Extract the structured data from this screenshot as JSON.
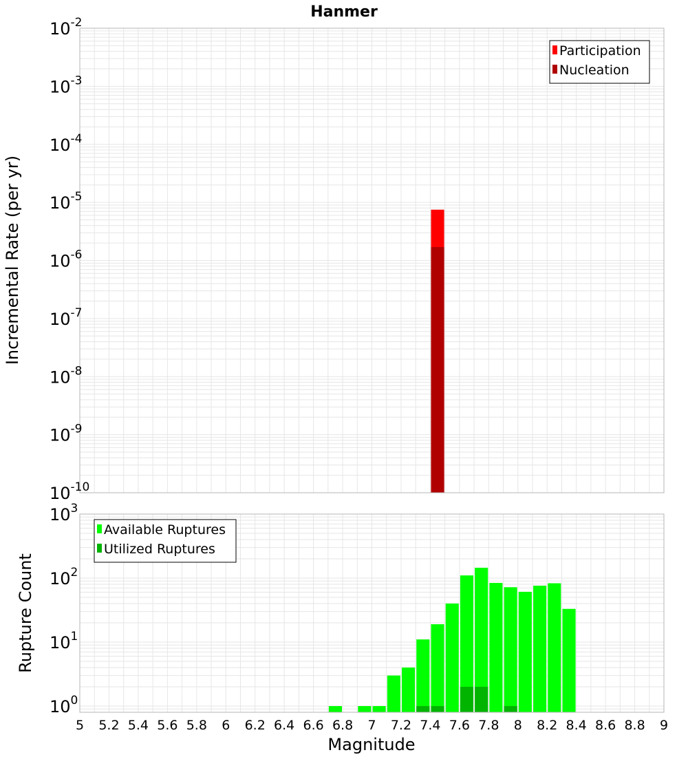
{
  "title": "Hanmer",
  "xlabel": "Magnitude",
  "x_ticks": [
    "5",
    "5.2",
    "5.4",
    "5.6",
    "5.8",
    "6",
    "6.2",
    "6.4",
    "6.6",
    "6.8",
    "7",
    "7.2",
    "7.4",
    "7.6",
    "7.8",
    "8",
    "8.2",
    "8.4",
    "8.6",
    "8.8",
    "9"
  ],
  "colors": {
    "participation": "#ff0000",
    "nucleation": "#b00000",
    "available": "#00ff00",
    "utilized": "#00b400",
    "grid": "#e6e6e6",
    "frame": "#b4b4b4"
  },
  "chart_data": [
    {
      "type": "bar",
      "title": "Hanmer",
      "ylabel": "Incremental Rate (per yr)",
      "yscale": "log",
      "ylim": [
        1e-10,
        0.01
      ],
      "xlim": [
        5,
        9
      ],
      "y_tick_exponents": [
        "-2",
        "-3",
        "-4",
        "-5",
        "-6",
        "-7",
        "-8",
        "-9",
        "-10"
      ],
      "legend": {
        "position": "top-right",
        "entries": [
          "Participation",
          "Nucleation"
        ]
      },
      "grid": true,
      "series": [
        {
          "name": "Participation",
          "x": [
            7.45
          ],
          "values": [
            7.5e-06
          ]
        },
        {
          "name": "Nucleation",
          "x": [
            7.45
          ],
          "values": [
            1.7e-06
          ]
        }
      ]
    },
    {
      "type": "bar",
      "ylabel": "Rupture Count",
      "yscale": "log",
      "ylim": [
        0.8,
        1000
      ],
      "xlim": [
        5,
        9
      ],
      "y_tick_exponents": [
        "3",
        "2",
        "1",
        "0"
      ],
      "legend": {
        "position": "top-left",
        "entries": [
          "Available Ruptures",
          "Utilized Ruptures"
        ]
      },
      "grid": true,
      "series": [
        {
          "name": "Available Ruptures",
          "x": [
            6.75,
            6.95,
            7.05,
            7.15,
            7.25,
            7.35,
            7.45,
            7.55,
            7.65,
            7.75,
            7.85,
            7.95,
            8.05,
            8.15,
            8.25,
            8.35
          ],
          "values": [
            1,
            1,
            1,
            3,
            4,
            11,
            19,
            40,
            110,
            145,
            84,
            72,
            61,
            76,
            83,
            33
          ]
        },
        {
          "name": "Utilized Ruptures",
          "x": [
            7.35,
            7.45,
            7.65,
            7.75,
            7.95
          ],
          "values": [
            1,
            1,
            2,
            2,
            1
          ]
        }
      ]
    }
  ]
}
